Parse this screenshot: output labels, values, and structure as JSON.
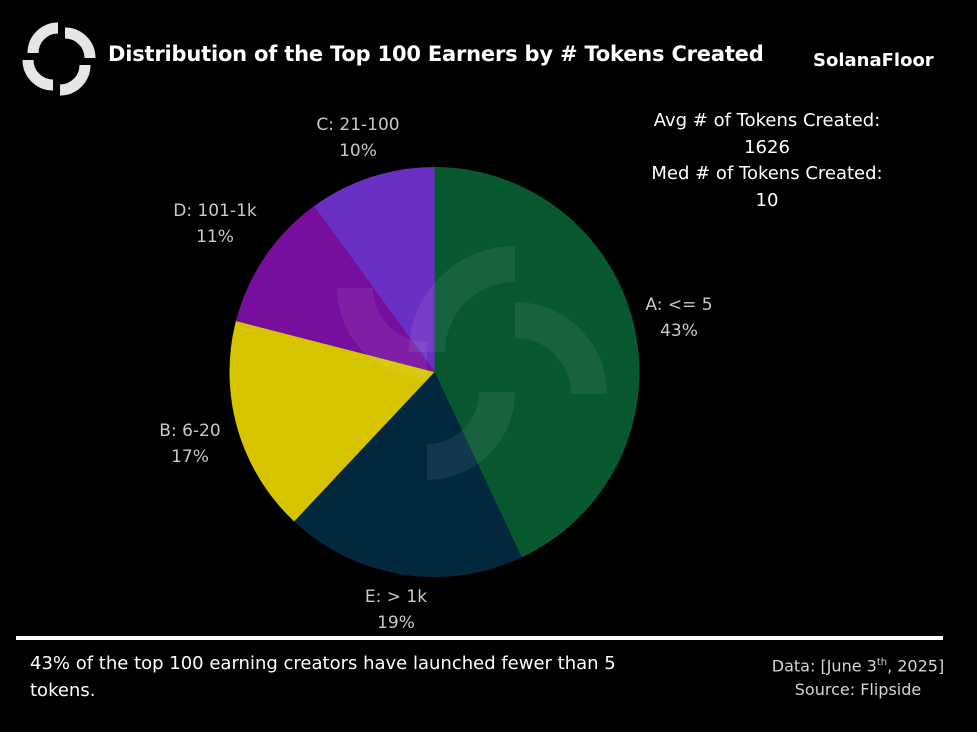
{
  "header": {
    "title": "Distribution of the Top 100 Earners by # Tokens Created",
    "brand": "SolanaFloor",
    "logo_icon": "solanafloor-logo-icon"
  },
  "stats": {
    "avg_label": "Avg # of Tokens Created:",
    "avg_value": "1626",
    "med_label": "Med # of Tokens Created:",
    "med_value": "10"
  },
  "chart_data": {
    "type": "pie",
    "title": "Distribution of the Top 100 Earners by # Tokens Created",
    "start_angle": "top, clockwise",
    "categories": [
      "A: <= 5",
      "E: > 1k",
      "B: 6-20",
      "D: 101-1k",
      "C: 21-100"
    ],
    "values": [
      43,
      19,
      17,
      11,
      10
    ],
    "unit": "%",
    "colors": [
      "#07582e",
      "#02283e",
      "#d6c400",
      "#780e9e",
      "#6c2fc4"
    ],
    "labels": [
      {
        "name": "A: <= 5",
        "pct": "43%"
      },
      {
        "name": "E: > 1k",
        "pct": "19%"
      },
      {
        "name": "B: 6-20",
        "pct": "17%"
      },
      {
        "name": "D: 101-1k",
        "pct": "11%"
      },
      {
        "name": "C: 21-100",
        "pct": "10%"
      }
    ],
    "legend": "none (direct labels)"
  },
  "footer": {
    "note": "43% of the top 100 earning creators have launched fewer than 5 tokens.",
    "data_prefix": "Data: [June 3",
    "data_sup": "th",
    "data_suffix": ", 2025]",
    "source": "Source: Flipside"
  }
}
